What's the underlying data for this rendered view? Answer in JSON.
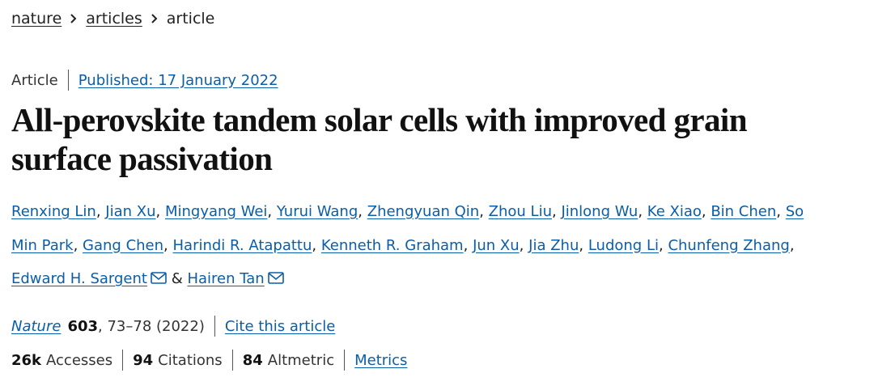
{
  "breadcrumb": [
    "nature",
    "articles",
    "article"
  ],
  "article_type": "Article",
  "published": "Published: 17 January 2022",
  "title": "All-perovskite tandem solar cells with improved grain surface passivation",
  "authors": [
    "Renxing Lin",
    "Jian Xu",
    "Mingyang Wei",
    "Yurui Wang",
    "Zhengyuan Qin",
    "Zhou Liu",
    "Jinlong Wu",
    "Ke Xiao",
    "Bin Chen",
    "So Min Park",
    "Gang Chen",
    "Harindi R. Atapattu",
    "Kenneth R. Graham",
    "Jun Xu",
    "Jia Zhu",
    "Ludong Li",
    "Chunfeng Zhang",
    "Edward H. Sargent",
    "Hairen Tan"
  ],
  "author_conjunction": "&",
  "journal": {
    "name": "Nature",
    "volume": 603,
    "pages": ", 73–78 (2022)",
    "cite": "Cite this article"
  },
  "metrics": {
    "accesses": {
      "value": "26k",
      "label": "Accesses"
    },
    "citations": {
      "value": 94,
      "label": "Citations"
    },
    "altmetric": {
      "value": 84,
      "label": "Altmetric"
    },
    "link": "Metrics"
  }
}
